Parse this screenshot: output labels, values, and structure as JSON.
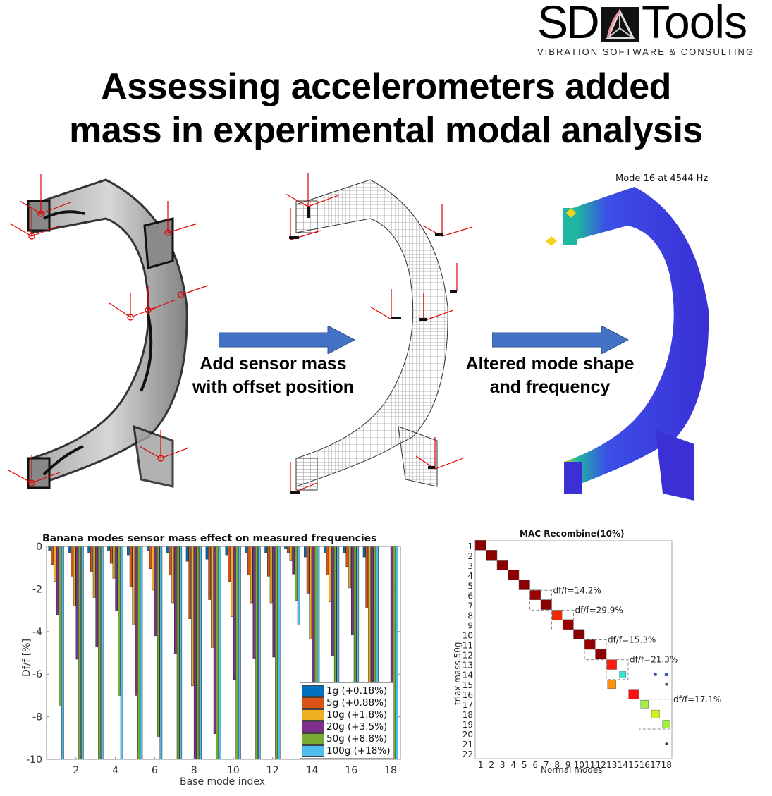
{
  "logo": {
    "brand_left": "SD",
    "brand_right": "Tools",
    "tagline": "VIBRATION SOFTWARE & CONSULTING"
  },
  "title": {
    "line1": "Assessing accelerometers added",
    "line2": "mass in experimental modal analysis"
  },
  "workflow": {
    "step1_caption_line1": "Add sensor mass",
    "step1_caption_line2": "with offset position",
    "step2_caption_line1": "Altered mode shape",
    "step2_caption_line2": "and frequency",
    "mode_label": "Mode 16 at 4544 Hz",
    "arrow_color": "#4472C4",
    "sensor_color": "#e00000",
    "mode_colors": {
      "low": "#3b2fd6",
      "mid": "#1fb7a0",
      "high": "#f4d21c"
    }
  },
  "chart_data": [
    {
      "type": "bar",
      "title": "Banana modes sensor mass effect on measured frequencies",
      "xlabel": "Base mode index",
      "ylabel": "Df/f [%]",
      "ylim": [
        -10,
        0
      ],
      "xlim": [
        0.5,
        18.5
      ],
      "yticks": [
        "0",
        "-2",
        "-4",
        "-6",
        "-8",
        "-10"
      ],
      "xticks": [
        "2",
        "4",
        "6",
        "8",
        "10",
        "12",
        "14",
        "16",
        "18"
      ],
      "legend_position": "lower right",
      "grid": false,
      "categories": [
        1,
        2,
        3,
        4,
        5,
        6,
        7,
        8,
        9,
        10,
        11,
        12,
        13,
        14,
        15,
        16,
        17,
        18
      ],
      "series": [
        {
          "name": "1g (+0.18%)",
          "color": "#0072BD",
          "values": [
            -0.2,
            -0.3,
            -0.3,
            -0.2,
            -0.4,
            -0.2,
            -0.3,
            -0.7,
            -0.6,
            -0.4,
            -0.3,
            -0.3,
            -0.1,
            -0.5,
            -0.3,
            -0.3,
            -0.5,
            0
          ]
        },
        {
          "name": "5g (+0.88%)",
          "color": "#D95319",
          "values": [
            -0.85,
            -1.4,
            -1.2,
            -0.8,
            -1.9,
            -1.05,
            -1.35,
            -3.4,
            -2.5,
            -1.65,
            -1.35,
            -1.4,
            -0.3,
            -2.2,
            -1.35,
            -0.95,
            -2.9,
            0
          ]
        },
        {
          "name": "10g (+1.8%)",
          "color": "#EDB120",
          "values": [
            -1.65,
            -2.8,
            -2.4,
            -1.5,
            -3.7,
            -2.05,
            -2.65,
            -6.55,
            -4.75,
            -3.3,
            -2.65,
            -2.65,
            -0.65,
            -4.35,
            -2.6,
            -1.95,
            -10,
            0
          ]
        },
        {
          "name": "20g (+3.5%)",
          "color": "#7E2F8E",
          "values": [
            -3.2,
            -5.3,
            -4.7,
            -3.0,
            -7.0,
            -4.2,
            -5.05,
            -10,
            -8.8,
            -6.25,
            -5.25,
            -5.2,
            -1.3,
            -10,
            -5.15,
            -4.15,
            -10,
            -10
          ]
        },
        {
          "name": "50g (+8.8%)",
          "color": "#77AC30",
          "values": [
            -7.5,
            -10,
            -10,
            -7.0,
            -10,
            -8.95,
            -10,
            -10,
            -10,
            -10,
            -10,
            -10,
            -2.55,
            -10,
            -10,
            -10,
            -10,
            -10
          ]
        },
        {
          "name": "100g (+18%)",
          "color": "#4DBEEE",
          "values": [
            -10,
            -10,
            -10,
            -10,
            -10,
            -10,
            -10,
            -10,
            -10,
            -10,
            -10,
            -10,
            -3.7,
            -10,
            -10,
            -10,
            -10,
            -10
          ]
        }
      ]
    },
    {
      "type": "heatmap",
      "title": "MAC Recombine(10%)",
      "xlabel": "Normal modes",
      "ylabel": "triax mass 50g",
      "x": [
        1,
        2,
        3,
        4,
        5,
        6,
        7,
        8,
        9,
        10,
        11,
        12,
        13,
        14,
        15,
        16,
        17,
        18
      ],
      "y": [
        1,
        2,
        3,
        4,
        5,
        6,
        7,
        8,
        9,
        10,
        11,
        12,
        13,
        14,
        15,
        16,
        17,
        18,
        19,
        20,
        21,
        22
      ],
      "cells": [
        {
          "row": 1,
          "col": 1,
          "value": 1.0,
          "color": "#8b0000"
        },
        {
          "row": 2,
          "col": 2,
          "value": 1.0,
          "color": "#8b0000"
        },
        {
          "row": 3,
          "col": 3,
          "value": 1.0,
          "color": "#8b0000"
        },
        {
          "row": 4,
          "col": 4,
          "value": 1.0,
          "color": "#8b0000"
        },
        {
          "row": 5,
          "col": 5,
          "value": 1.0,
          "color": "#8b0000"
        },
        {
          "row": 6,
          "col": 6,
          "value": 0.95,
          "color": "#9b0000"
        },
        {
          "row": 7,
          "col": 7,
          "value": 1.0,
          "color": "#8b0000"
        },
        {
          "row": 8,
          "col": 8,
          "value": 0.8,
          "color": "#f02800"
        },
        {
          "row": 9,
          "col": 9,
          "value": 0.95,
          "color": "#9b0000"
        },
        {
          "row": 10,
          "col": 10,
          "value": 1.0,
          "color": "#8b0000"
        },
        {
          "row": 11,
          "col": 11,
          "value": 0.95,
          "color": "#9b0000"
        },
        {
          "row": 12,
          "col": 12,
          "value": 1.0,
          "color": "#8b0000"
        },
        {
          "row": 13,
          "col": 13,
          "value": 0.8,
          "color": "#ff1a10"
        },
        {
          "row": 14,
          "col": 14,
          "value": 0.35,
          "color": "#30e8d0"
        },
        {
          "row": 14,
          "col": 17,
          "value": 0.05,
          "color": "#1040c0"
        },
        {
          "row": 14,
          "col": 18,
          "value": 0.08,
          "color": "#2060d0"
        },
        {
          "row": 15,
          "col": 13,
          "value": 0.6,
          "color": "#ff9010"
        },
        {
          "row": 15,
          "col": 18,
          "value": 0.03,
          "color": "#1030a0"
        },
        {
          "row": 16,
          "col": 15,
          "value": 0.85,
          "color": "#ff1010"
        },
        {
          "row": 17,
          "col": 16,
          "value": 0.5,
          "color": "#a0f040"
        },
        {
          "row": 18,
          "col": 17,
          "value": 0.55,
          "color": "#d0f020"
        },
        {
          "row": 19,
          "col": 18,
          "value": 0.5,
          "color": "#a0f040"
        },
        {
          "row": 21,
          "col": 18,
          "value": 0.03,
          "color": "#1020a0"
        }
      ],
      "annotations": [
        {
          "text": "df/f=14.2%",
          "rows": [
            6,
            7
          ],
          "cols": [
            6,
            7
          ]
        },
        {
          "text": "df/f=29.9%",
          "rows": [
            8,
            9
          ],
          "cols": [
            8,
            9
          ]
        },
        {
          "text": "df/f=15.3%",
          "rows": [
            11,
            12
          ],
          "cols": [
            11,
            12
          ]
        },
        {
          "text": "df/f=21.3%",
          "rows": [
            13,
            14
          ],
          "cols": [
            13,
            14
          ]
        },
        {
          "text": "df/f=17.1%",
          "rows": [
            17,
            19
          ],
          "cols": [
            16,
            18
          ]
        }
      ]
    }
  ]
}
